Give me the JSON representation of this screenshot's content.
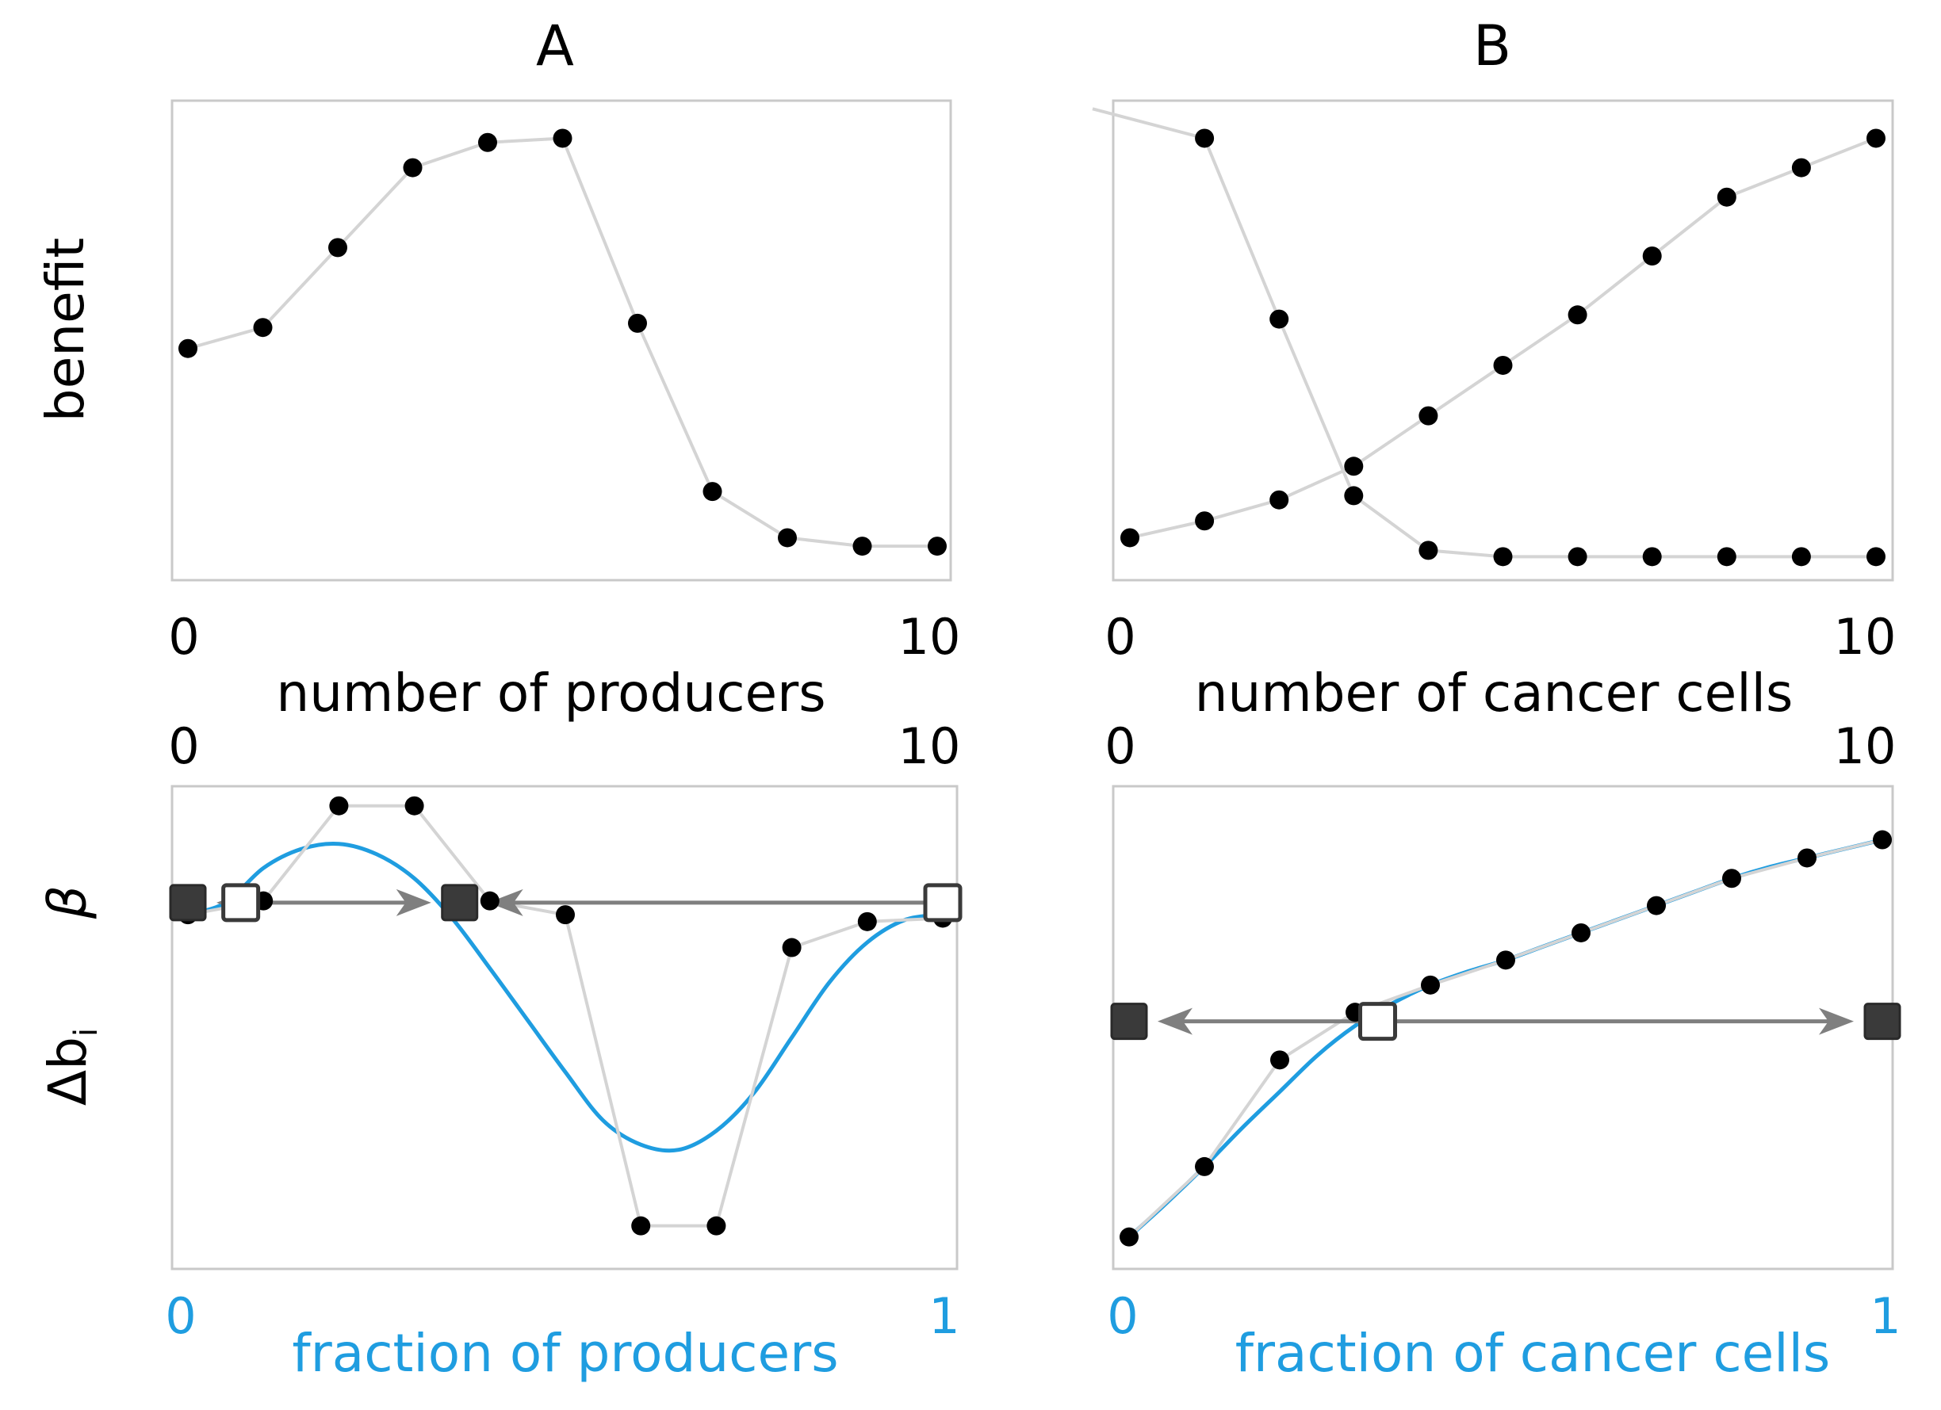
{
  "colors": {
    "blue": "#1f9de0",
    "black": "#000000",
    "grey": "#7f7f7f"
  },
  "panels": {
    "A": {
      "title": "A"
    },
    "B": {
      "title": "B"
    }
  },
  "labels": {
    "benefit": "benefit",
    "beta": "β",
    "delta_b": "Δb",
    "delta_b_sub": "i"
  },
  "chart_data": [
    {
      "id": "A-top",
      "type": "line",
      "panel": "A",
      "xlabel": "number of producers",
      "ylabel": "benefit",
      "xlim": [
        0,
        10
      ],
      "ylim": [
        0,
        1.08
      ],
      "xticks": [
        "0",
        "10"
      ],
      "series": [
        {
          "name": "benefit",
          "x": [
            0,
            1,
            2,
            3,
            4,
            5,
            6,
            7,
            8,
            9,
            10
          ],
          "values": [
            0.5,
            0.55,
            0.74,
            0.93,
            0.99,
            1.0,
            0.56,
            0.16,
            0.05,
            0.03,
            0.03
          ]
        }
      ]
    },
    {
      "id": "B-top",
      "type": "line",
      "panel": "B",
      "xlabel": "number of cancer cells",
      "ylabel": "benefit",
      "xlim": [
        0,
        10
      ],
      "ylim": [
        0,
        1.08
      ],
      "xticks": [
        "0",
        "10"
      ],
      "series": [
        {
          "name": "increasing",
          "x": [
            0,
            1,
            2,
            3,
            4,
            5,
            6,
            7,
            8,
            9,
            10
          ],
          "values": [
            0.05,
            0.09,
            0.14,
            0.22,
            0.34,
            0.46,
            0.58,
            0.72,
            0.86,
            0.93,
            1.0
          ]
        },
        {
          "name": "decreasing",
          "x": [
            -0.5,
            1,
            2,
            3,
            4,
            5,
            6,
            7,
            8,
            9,
            10
          ],
          "values": [
            1.07,
            1.0,
            0.57,
            0.15,
            0.02,
            0.005,
            0.005,
            0.005,
            0.005,
            0.005,
            0.005
          ]
        }
      ]
    },
    {
      "id": "A-bottom",
      "type": "line",
      "panel": "A",
      "xlabel": "fraction of producers",
      "top_xticks": [
        "0",
        "10"
      ],
      "xticks": [
        "0",
        "1"
      ],
      "ylabel_beta": "β",
      "ylabel_delta": "Δb",
      "xlim": [
        0,
        1
      ],
      "ylim": [
        -2.0,
        0.6
      ],
      "zero_level": 0,
      "series": [
        {
          "name": "Δb_i (discrete)",
          "x": [
            0,
            0.1,
            0.2,
            0.3,
            0.4,
            0.5,
            0.6,
            0.7,
            0.8,
            0.9,
            1.0
          ],
          "values": [
            -0.07,
            0.01,
            0.56,
            0.56,
            0.01,
            -0.07,
            -1.87,
            -1.87,
            -0.26,
            -0.11,
            -0.09
          ]
        },
        {
          "name": "β (smooth)",
          "color": "blue",
          "x": [
            0.0,
            0.05,
            0.1,
            0.15,
            0.2,
            0.25,
            0.3,
            0.35,
            0.4,
            0.45,
            0.5,
            0.55,
            0.6,
            0.65,
            0.7,
            0.75,
            0.8,
            0.85,
            0.9,
            0.95,
            1.0
          ],
          "values": [
            -0.07,
            0.0,
            0.2,
            0.31,
            0.34,
            0.28,
            0.14,
            -0.09,
            -0.38,
            -0.68,
            -0.98,
            -1.26,
            -1.4,
            -1.43,
            -1.32,
            -1.1,
            -0.78,
            -0.46,
            -0.23,
            -0.1,
            -0.07
          ]
        }
      ],
      "fixed_points": [
        {
          "x": 0.0,
          "stable": true
        },
        {
          "x": 0.07,
          "stable": false
        },
        {
          "x": 0.36,
          "stable": true
        },
        {
          "x": 1.0,
          "stable": false
        }
      ],
      "flows": [
        {
          "from": 0.07,
          "to": 0.0
        },
        {
          "from": 0.07,
          "to": 0.36
        },
        {
          "from": 1.0,
          "to": 0.36
        }
      ]
    },
    {
      "id": "B-bottom",
      "type": "line",
      "panel": "B",
      "xlabel": "fraction of cancer cells",
      "top_xticks": [
        "0",
        "10"
      ],
      "xticks": [
        "0",
        "1"
      ],
      "xlim": [
        0,
        1
      ],
      "ylim": [
        -1.0,
        0.98
      ],
      "zero_level": 0,
      "series": [
        {
          "name": "Δb_i (discrete)",
          "x": [
            0,
            0.1,
            0.2,
            0.3,
            0.4,
            0.5,
            0.6,
            0.7,
            0.8,
            0.9,
            1.0
          ],
          "values": [
            -0.95,
            -0.64,
            -0.17,
            0.04,
            0.16,
            0.27,
            0.39,
            0.51,
            0.63,
            0.72,
            0.8
          ]
        },
        {
          "name": "β (smooth)",
          "color": "blue",
          "x": [
            0.0,
            0.05,
            0.1,
            0.15,
            0.2,
            0.25,
            0.3,
            0.35,
            0.4,
            0.45,
            0.5,
            0.55,
            0.6,
            0.65,
            0.7,
            0.75,
            0.8,
            0.85,
            0.9,
            0.95,
            1.0
          ],
          "values": [
            -0.95,
            -0.8,
            -0.64,
            -0.47,
            -0.31,
            -0.15,
            -0.02,
            0.08,
            0.16,
            0.22,
            0.27,
            0.33,
            0.39,
            0.45,
            0.51,
            0.57,
            0.63,
            0.68,
            0.72,
            0.76,
            0.8
          ]
        }
      ],
      "fixed_points": [
        {
          "x": 0.0,
          "stable": true
        },
        {
          "x": 0.33,
          "stable": false
        },
        {
          "x": 1.0,
          "stable": true
        }
      ],
      "flows": [
        {
          "from": 0.33,
          "to": 0.0
        },
        {
          "from": 0.33,
          "to": 1.0
        }
      ]
    }
  ]
}
